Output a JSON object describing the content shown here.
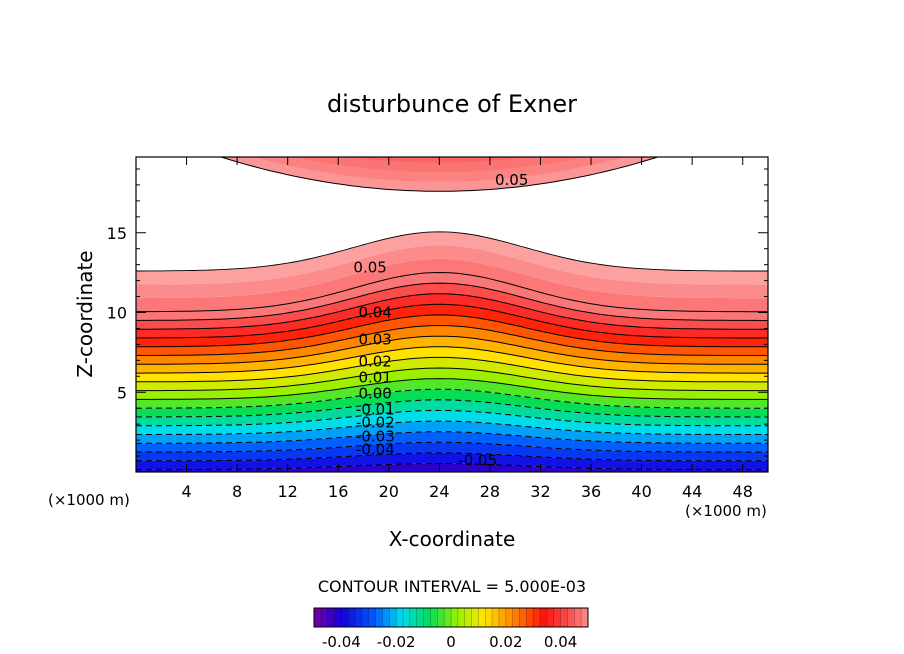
{
  "chart_data": {
    "type": "contour",
    "title": "disturbunce of Exner",
    "xlabel": "X-coordinate",
    "ylabel": "Z-coordinate",
    "x_unit_left": "(×1000 m)",
    "x_unit_right": "(×1000 m)",
    "xlim": [
      0,
      50
    ],
    "ylim": [
      0,
      19.75
    ],
    "x_ticks": [
      4,
      8,
      12,
      16,
      20,
      24,
      28,
      32,
      36,
      40,
      44,
      48
    ],
    "y_ticks": [
      5,
      10,
      15
    ],
    "contour_interval_text": "CONTOUR INTERVAL = 5.000E-03",
    "contour_interval": 0.005,
    "contour_labels": [
      {
        "text": "0.05",
        "x": 28.4,
        "y": 18.0
      },
      {
        "text": "0.05",
        "x": 17.2,
        "y": 12.5
      },
      {
        "text": "0.04",
        "x": 17.6,
        "y": 9.7
      },
      {
        "text": "0.03",
        "x": 17.6,
        "y": 8.0
      },
      {
        "text": "0.02",
        "x": 17.6,
        "y": 6.6
      },
      {
        "text": "0.01",
        "x": 17.6,
        "y": 5.6
      },
      {
        "text": "0.00",
        "x": 17.6,
        "y": 4.6
      },
      {
        "text": "-0.01",
        "x": 17.4,
        "y": 3.6
      },
      {
        "text": "-0.02",
        "x": 17.4,
        "y": 2.8
      },
      {
        "text": "-0.03",
        "x": 17.4,
        "y": 1.9
      },
      {
        "text": "-0.04",
        "x": 17.4,
        "y": 1.1
      },
      {
        "text": "-0.05",
        "x": 25.5,
        "y": 0.4
      }
    ],
    "colorbar": {
      "min": -0.05,
      "max": 0.05,
      "tick_labels": [
        "-0.04",
        "-0.02",
        "0",
        "0.02",
        "0.04"
      ],
      "tick_values": [
        -0.04,
        -0.02,
        0,
        0.02,
        0.04
      ]
    },
    "grid": false
  }
}
